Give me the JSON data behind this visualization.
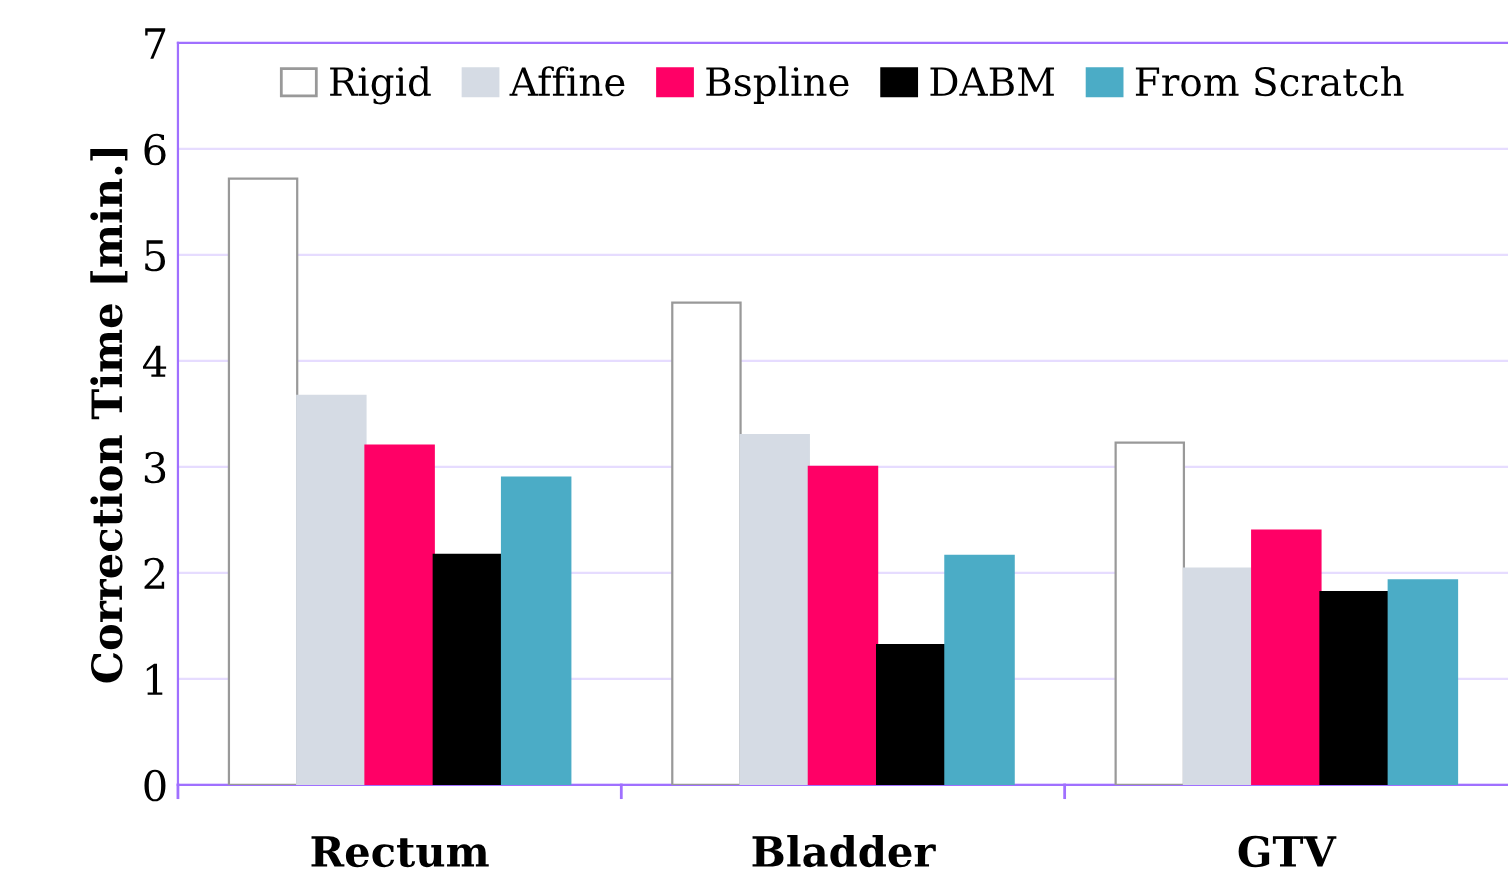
{
  "chart_data": {
    "type": "bar",
    "ylabel": "Correction Time [min.]",
    "categories": [
      "Rectum",
      "Bladder",
      "GTV"
    ],
    "series": [
      {
        "name": "Rigid",
        "color": "#ffffff",
        "values": [
          5.72,
          4.55,
          3.23
        ]
      },
      {
        "name": "Affine",
        "color": "#d5dbe4",
        "values": [
          3.67,
          3.3,
          2.04
        ]
      },
      {
        "name": "Bspline",
        "color": "#ff0066",
        "values": [
          3.2,
          3.0,
          2.4
        ]
      },
      {
        "name": "DABM",
        "color": "#000000",
        "values": [
          2.17,
          1.32,
          1.82
        ]
      },
      {
        "name": "From Scratch",
        "color": "#4bacc6",
        "values": [
          2.9,
          2.16,
          1.93
        ]
      }
    ],
    "ylim": [
      0,
      7
    ],
    "yticks": [
      0,
      1,
      2,
      3,
      4,
      5,
      6,
      7
    ],
    "grid": "y",
    "legend": "top"
  }
}
